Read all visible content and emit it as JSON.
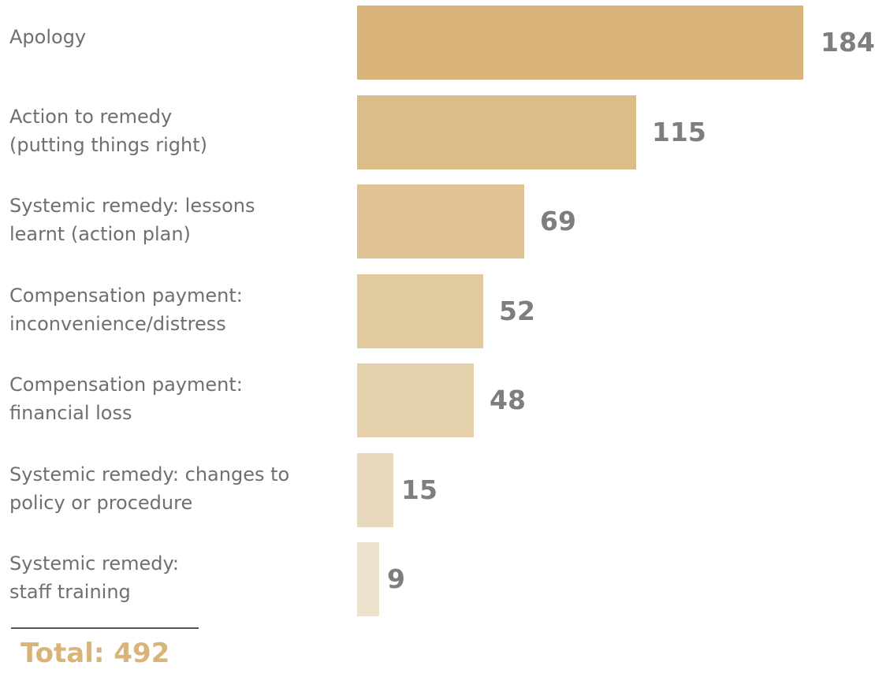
{
  "chart_data": {
    "type": "bar",
    "orientation": "horizontal",
    "categories": [
      "Apology",
      "Action to remedy\n(putting things right)",
      "Systemic remedy: lessons\nlearnt (action plan)",
      "Compensation payment:\ninconvenience/distress",
      "Compensation payment:\nfinancial loss",
      "Systemic remedy: changes to\npolicy or procedure",
      "Systemic remedy:\nstaff training"
    ],
    "values": [
      184,
      115,
      69,
      52,
      48,
      15,
      9
    ],
    "value_labels": [
      "184",
      "115",
      "69",
      "52",
      "48",
      "15",
      "9"
    ],
    "bar_colors": [
      "#d8b47a",
      "#dcbc89",
      "#dfc394",
      "#e2caa0",
      "#e5d1ad",
      "#e9d9bc",
      "#ede2cc"
    ],
    "xlim": [
      0,
      184
    ],
    "grid": false,
    "legend": "none"
  },
  "total": {
    "label": "Total: 492",
    "color": "#d8b47a"
  }
}
